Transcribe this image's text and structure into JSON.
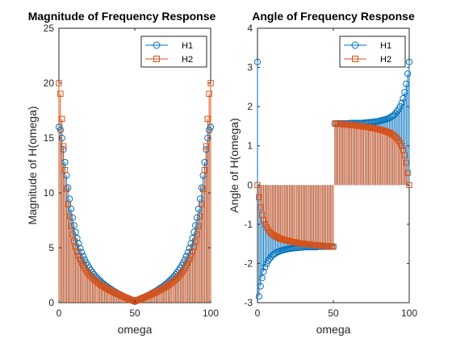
{
  "colors": {
    "h1": "#0072BD",
    "h2": "#D95319",
    "axis": "#262626"
  },
  "chart_data": [
    {
      "type": "stem",
      "title": "Magnitude of Frequency Response",
      "xlabel": "omega",
      "ylabel": "Magnitude of H(omega)",
      "xlim": [
        0,
        100
      ],
      "ylim": [
        0,
        25
      ],
      "xticks": [
        "0",
        "50",
        "100"
      ],
      "yticks": [
        "0",
        "5",
        "10",
        "15",
        "20",
        "25"
      ],
      "legend": {
        "entries": [
          "H1",
          "H2"
        ],
        "position": "top-right"
      },
      "x": {
        "start": 0,
        "stop": 100,
        "step": 1
      },
      "series": [
        {
          "name": "H1",
          "marker": "circle",
          "color": "#0072BD",
          "values": [
            16.0,
            15.73,
            15.0,
            13.96,
            12.79,
            11.6,
            10.48,
            9.46,
            8.54,
            7.74,
            7.04,
            6.42,
            5.87,
            5.39,
            4.96,
            4.58,
            4.24,
            3.93,
            3.65,
            3.4,
            3.17,
            2.96,
            2.77,
            2.59,
            2.42,
            2.27,
            2.13,
            2.0,
            1.87,
            1.75,
            1.64,
            1.53,
            1.43,
            1.34,
            1.25,
            1.16,
            1.07,
            0.99,
            0.91,
            0.84,
            0.76,
            0.69,
            0.62,
            0.55,
            0.48,
            0.42,
            0.35,
            0.28,
            0.22,
            0.15,
            0.09,
            0.15,
            0.22,
            0.28,
            0.35,
            0.42,
            0.48,
            0.55,
            0.62,
            0.69,
            0.76,
            0.84,
            0.91,
            0.99,
            1.07,
            1.16,
            1.25,
            1.34,
            1.43,
            1.53,
            1.64,
            1.75,
            1.87,
            2.0,
            2.13,
            2.27,
            2.42,
            2.59,
            2.77,
            2.96,
            3.17,
            3.4,
            3.65,
            3.93,
            4.24,
            4.58,
            4.96,
            5.39,
            5.87,
            6.42,
            7.04,
            7.74,
            8.54,
            9.46,
            10.48,
            11.6,
            12.79,
            13.96,
            15.0,
            15.73,
            16.0
          ]
        },
        {
          "name": "H2",
          "marker": "square",
          "color": "#D95319",
          "values": [
            20.0,
            19.03,
            16.74,
            14.25,
            12.08,
            10.35,
            8.97,
            7.87,
            6.97,
            6.23,
            5.61,
            5.09,
            4.65,
            4.27,
            3.93,
            3.64,
            3.37,
            3.14,
            2.93,
            2.74,
            2.57,
            2.41,
            2.27,
            2.13,
            2.01,
            1.89,
            1.78,
            1.68,
            1.58,
            1.49,
            1.41,
            1.32,
            1.24,
            1.17,
            1.1,
            1.03,
            0.96,
            0.89,
            0.83,
            0.77,
            0.7,
            0.64,
            0.58,
            0.52,
            0.47,
            0.41,
            0.35,
            0.29,
            0.24,
            0.18,
            0.13,
            0.18,
            0.24,
            0.29,
            0.35,
            0.41,
            0.47,
            0.52,
            0.58,
            0.64,
            0.7,
            0.77,
            0.83,
            0.89,
            0.96,
            1.03,
            1.1,
            1.17,
            1.24,
            1.32,
            1.41,
            1.49,
            1.58,
            1.68,
            1.78,
            1.89,
            2.01,
            2.13,
            2.27,
            2.41,
            2.57,
            2.74,
            2.93,
            3.14,
            3.37,
            3.64,
            3.93,
            4.27,
            4.65,
            5.09,
            5.61,
            6.23,
            6.97,
            7.87,
            8.97,
            10.35,
            12.08,
            14.25,
            16.74,
            19.03,
            20.0
          ]
        }
      ]
    },
    {
      "type": "stem",
      "title": "Angle of Frequency Response",
      "xlabel": "omega",
      "ylabel": "Angle of H(omega)",
      "xlim": [
        0,
        100
      ],
      "ylim": [
        -3,
        4
      ],
      "xticks": [
        "0",
        "50",
        "100"
      ],
      "yticks": [
        "-3",
        "-2",
        "-1",
        "0",
        "1",
        "2",
        "3",
        "4"
      ],
      "legend": {
        "entries": [
          "H1",
          "H2"
        ],
        "position": "top-right"
      },
      "x": {
        "start": 0,
        "stop": 100,
        "step": 1
      },
      "series": [
        {
          "name": "H1",
          "marker": "circle",
          "color": "#0072BD",
          "values": [
            3.14,
            -2.84,
            -2.58,
            -2.37,
            -2.21,
            -2.09,
            -2.0,
            -1.93,
            -1.88,
            -1.83,
            -1.79,
            -1.76,
            -1.74,
            -1.71,
            -1.7,
            -1.68,
            -1.67,
            -1.66,
            -1.65,
            -1.64,
            -1.63,
            -1.62,
            -1.62,
            -1.61,
            -1.61,
            -1.6,
            -1.6,
            -1.6,
            -1.59,
            -1.59,
            -1.59,
            -1.58,
            -1.58,
            -1.58,
            -1.58,
            -1.58,
            -1.58,
            -1.58,
            -1.58,
            -1.58,
            -1.57,
            -1.57,
            -1.57,
            -1.57,
            -1.57,
            -1.57,
            -1.57,
            -1.57,
            -1.57,
            -1.57,
            -1.57,
            1.57,
            1.57,
            1.57,
            1.57,
            1.57,
            1.57,
            1.57,
            1.57,
            1.57,
            1.57,
            1.58,
            1.58,
            1.58,
            1.58,
            1.58,
            1.58,
            1.58,
            1.58,
            1.58,
            1.59,
            1.59,
            1.59,
            1.6,
            1.6,
            1.6,
            1.61,
            1.61,
            1.62,
            1.62,
            1.63,
            1.64,
            1.65,
            1.66,
            1.67,
            1.68,
            1.7,
            1.71,
            1.74,
            1.76,
            1.79,
            1.83,
            1.88,
            1.93,
            2.0,
            2.09,
            2.21,
            2.37,
            2.58,
            2.84,
            3.14
          ]
        },
        {
          "name": "H2",
          "marker": "square",
          "color": "#D95319",
          "values": [
            0.0,
            -0.31,
            -0.57,
            -0.76,
            -0.9,
            -1.0,
            -1.08,
            -1.14,
            -1.19,
            -1.23,
            -1.26,
            -1.29,
            -1.31,
            -1.33,
            -1.35,
            -1.36,
            -1.38,
            -1.39,
            -1.4,
            -1.41,
            -1.42,
            -1.43,
            -1.44,
            -1.45,
            -1.45,
            -1.46,
            -1.47,
            -1.48,
            -1.48,
            -1.49,
            -1.49,
            -1.5,
            -1.5,
            -1.51,
            -1.51,
            -1.52,
            -1.52,
            -1.53,
            -1.53,
            -1.53,
            -1.54,
            -1.54,
            -1.55,
            -1.55,
            -1.55,
            -1.56,
            -1.56,
            -1.56,
            -1.56,
            -1.57,
            -1.57,
            1.57,
            1.56,
            1.56,
            1.56,
            1.56,
            1.55,
            1.55,
            1.55,
            1.54,
            1.54,
            1.53,
            1.53,
            1.53,
            1.52,
            1.52,
            1.51,
            1.51,
            1.5,
            1.5,
            1.49,
            1.49,
            1.48,
            1.48,
            1.47,
            1.46,
            1.45,
            1.45,
            1.44,
            1.43,
            1.42,
            1.41,
            1.4,
            1.39,
            1.38,
            1.36,
            1.35,
            1.33,
            1.31,
            1.29,
            1.26,
            1.23,
            1.19,
            1.14,
            1.08,
            1.0,
            0.9,
            0.76,
            0.57,
            0.31,
            0.0
          ]
        }
      ]
    }
  ]
}
